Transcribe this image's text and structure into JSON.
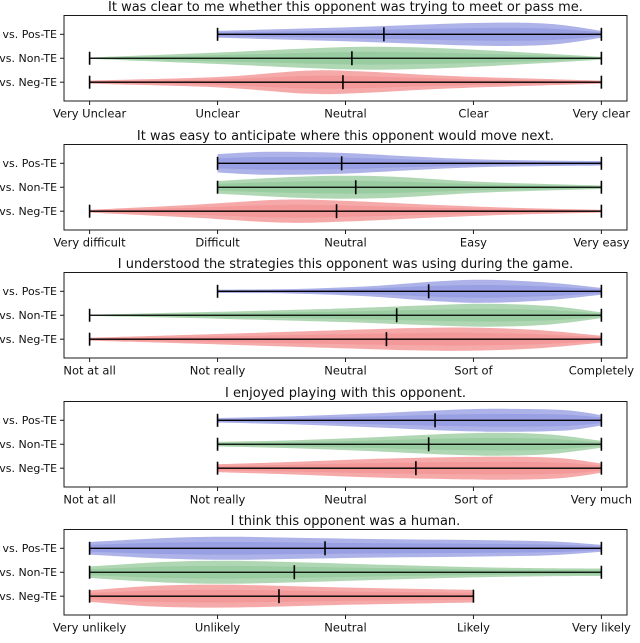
{
  "figure": {
    "background": "#ffffff",
    "axis_color": "#1a1a1a",
    "line_color": "#000000"
  },
  "row_labels": [
    "vs. Pos-TE",
    "vs. Non-TE",
    "vs. Neg-TE"
  ],
  "chart_data": [
    {
      "type": "violin",
      "orientation": "horizontal",
      "title": "It was clear to me whether this opponent was trying to meet or pass me.",
      "xlim": [
        0.8,
        5.2
      ],
      "x_ticks": {
        "values": [
          1,
          2,
          3,
          4,
          5
        ],
        "labels": [
          "Very Unclear",
          "Unclear",
          "Neutral",
          "Clear",
          "Very clear"
        ]
      },
      "series": [
        {
          "name": "vs. Pos-TE",
          "color": "#a6abe7",
          "color_core": "#8b92de",
          "min": 2,
          "max": 5,
          "mean": 3.3,
          "width_profile": [
            [
              2,
              0.3
            ],
            [
              2.5,
              0.45
            ],
            [
              3,
              0.6
            ],
            [
              3.5,
              0.8
            ],
            [
              4,
              0.98
            ],
            [
              4.4,
              1.0
            ],
            [
              4.7,
              0.8
            ],
            [
              5,
              0.3
            ]
          ]
        },
        {
          "name": "vs. Non-TE",
          "color": "#a9d4ac",
          "color_core": "#8cc494",
          "min": 1,
          "max": 5,
          "mean": 3.05,
          "width_profile": [
            [
              1,
              0.06
            ],
            [
              2,
              0.5
            ],
            [
              2.7,
              0.85
            ],
            [
              3.2,
              1.0
            ],
            [
              3.8,
              0.85
            ],
            [
              4.5,
              0.45
            ],
            [
              5,
              0.12
            ]
          ]
        },
        {
          "name": "vs. Neg-TE",
          "color": "#f5a2a2",
          "color_core": "#f28f8f",
          "min": 1,
          "max": 5,
          "mean": 2.98,
          "width_profile": [
            [
              1,
              0.14
            ],
            [
              2,
              0.45
            ],
            [
              2.7,
              1.0
            ],
            [
              3.1,
              0.95
            ],
            [
              3.8,
              0.55
            ],
            [
              4.5,
              0.3
            ],
            [
              5,
              0.14
            ]
          ]
        }
      ]
    },
    {
      "type": "violin",
      "orientation": "horizontal",
      "title": "It was easy to anticipate where this opponent would move next.",
      "xlim": [
        0.8,
        5.2
      ],
      "x_ticks": {
        "values": [
          1,
          2,
          3,
          4,
          5
        ],
        "labels": [
          "Very difficult",
          "Difficult",
          "Neutral",
          "Easy",
          "Very easy"
        ]
      },
      "series": [
        {
          "name": "vs. Pos-TE",
          "color": "#a6abe7",
          "color_core": "#8b92de",
          "min": 2,
          "max": 5,
          "mean": 2.97,
          "width_profile": [
            [
              2,
              0.8
            ],
            [
              2.4,
              1.0
            ],
            [
              3,
              0.9
            ],
            [
              3.5,
              0.6
            ],
            [
              4,
              0.35
            ],
            [
              4.5,
              0.25
            ],
            [
              5,
              0.2
            ]
          ]
        },
        {
          "name": "vs. Non-TE",
          "color": "#a9d4ac",
          "color_core": "#8cc494",
          "min": 2,
          "max": 5,
          "mean": 3.08,
          "width_profile": [
            [
              2,
              0.55
            ],
            [
              2.6,
              0.9
            ],
            [
              3,
              1.0
            ],
            [
              3.4,
              0.9
            ],
            [
              4,
              0.5
            ],
            [
              4.5,
              0.3
            ],
            [
              5,
              0.15
            ]
          ]
        },
        {
          "name": "vs. Neg-TE",
          "color": "#f5a2a2",
          "color_core": "#f28f8f",
          "min": 1,
          "max": 5,
          "mean": 2.93,
          "width_profile": [
            [
              1,
              0.12
            ],
            [
              1.8,
              0.55
            ],
            [
              2.5,
              1.0
            ],
            [
              3,
              0.9
            ],
            [
              3.7,
              0.55
            ],
            [
              4.3,
              0.3
            ],
            [
              5,
              0.12
            ]
          ]
        }
      ]
    },
    {
      "type": "violin",
      "orientation": "horizontal",
      "title": "I understood the strategies this opponent was using during the game.",
      "xlim": [
        0.8,
        5.2
      ],
      "x_ticks": {
        "values": [
          1,
          2,
          3,
          4,
          5
        ],
        "labels": [
          "Not at all",
          "Not really",
          "Neutral",
          "Sort of",
          "Completely"
        ]
      },
      "series": [
        {
          "name": "vs. Pos-TE",
          "color": "#a6abe7",
          "color_core": "#8b92de",
          "min": 2,
          "max": 5,
          "mean": 3.65,
          "width_profile": [
            [
              2,
              0.15
            ],
            [
              2.6,
              0.2
            ],
            [
              3.2,
              0.45
            ],
            [
              3.7,
              0.85
            ],
            [
              4.1,
              1.0
            ],
            [
              4.6,
              0.75
            ],
            [
              5,
              0.3
            ]
          ]
        },
        {
          "name": "vs. Non-TE",
          "color": "#a9d4ac",
          "color_core": "#8cc494",
          "min": 1,
          "max": 5,
          "mean": 3.4,
          "width_profile": [
            [
              1,
              0.05
            ],
            [
              2,
              0.3
            ],
            [
              3,
              0.6
            ],
            [
              3.6,
              0.85
            ],
            [
              4.1,
              1.0
            ],
            [
              4.6,
              0.8
            ],
            [
              5,
              0.25
            ]
          ]
        },
        {
          "name": "vs. Neg-TE",
          "color": "#f5a2a2",
          "color_core": "#f28f8f",
          "min": 1,
          "max": 5,
          "mean": 3.32,
          "width_profile": [
            [
              1,
              0.12
            ],
            [
              2,
              0.45
            ],
            [
              3,
              0.8
            ],
            [
              3.6,
              0.98
            ],
            [
              4,
              1.0
            ],
            [
              4.5,
              0.8
            ],
            [
              5,
              0.3
            ]
          ]
        }
      ]
    },
    {
      "type": "violin",
      "orientation": "horizontal",
      "title": "I enjoyed playing with this opponent.",
      "xlim": [
        0.8,
        5.2
      ],
      "x_ticks": {
        "values": [
          1,
          2,
          3,
          4,
          5
        ],
        "labels": [
          "Not at all",
          "Not really",
          "Neutral",
          "Sort of",
          "Very much"
        ]
      },
      "series": [
        {
          "name": "vs. Pos-TE",
          "color": "#a6abe7",
          "color_core": "#8b92de",
          "min": 2,
          "max": 5,
          "mean": 3.7,
          "width_profile": [
            [
              2,
              0.2
            ],
            [
              2.6,
              0.35
            ],
            [
              3.2,
              0.6
            ],
            [
              3.8,
              0.9
            ],
            [
              4.2,
              1.0
            ],
            [
              4.7,
              0.9
            ],
            [
              5,
              0.45
            ]
          ]
        },
        {
          "name": "vs. Non-TE",
          "color": "#a9d4ac",
          "color_core": "#8cc494",
          "min": 2,
          "max": 5,
          "mean": 3.65,
          "width_profile": [
            [
              2,
              0.2
            ],
            [
              2.6,
              0.35
            ],
            [
              3.2,
              0.6
            ],
            [
              3.8,
              0.9
            ],
            [
              4.2,
              1.0
            ],
            [
              4.6,
              0.85
            ],
            [
              5,
              0.3
            ]
          ]
        },
        {
          "name": "vs. Neg-TE",
          "color": "#f5a2a2",
          "color_core": "#f28f8f",
          "min": 2,
          "max": 5,
          "mean": 3.55,
          "width_profile": [
            [
              2,
              0.35
            ],
            [
              2.6,
              0.55
            ],
            [
              3.2,
              0.8
            ],
            [
              3.8,
              0.95
            ],
            [
              4.3,
              1.0
            ],
            [
              4.7,
              0.85
            ],
            [
              5,
              0.4
            ]
          ]
        }
      ]
    },
    {
      "type": "violin",
      "orientation": "horizontal",
      "title": "I think this opponent was a human.",
      "xlim": [
        0.8,
        5.2
      ],
      "x_ticks": {
        "values": [
          1,
          2,
          3,
          4,
          5
        ],
        "labels": [
          "Very unlikely",
          "Unlikely",
          "Neutral",
          "Likely",
          "Very likely"
        ]
      },
      "series": [
        {
          "name": "vs. Pos-TE",
          "color": "#a6abe7",
          "color_core": "#8b92de",
          "min": 1,
          "max": 5,
          "mean": 2.84,
          "width_profile": [
            [
              1,
              0.55
            ],
            [
              1.6,
              0.9
            ],
            [
              2.1,
              1.0
            ],
            [
              2.7,
              0.9
            ],
            [
              3.3,
              0.8
            ],
            [
              4,
              0.72
            ],
            [
              4.6,
              0.6
            ],
            [
              5,
              0.3
            ]
          ]
        },
        {
          "name": "vs. Non-TE",
          "color": "#a9d4ac",
          "color_core": "#8cc494",
          "min": 1,
          "max": 5,
          "mean": 2.6,
          "width_profile": [
            [
              1,
              0.5
            ],
            [
              1.6,
              0.9
            ],
            [
              2.1,
              1.0
            ],
            [
              2.7,
              0.85
            ],
            [
              3.3,
              0.65
            ],
            [
              4,
              0.45
            ],
            [
              4.6,
              0.35
            ],
            [
              5,
              0.33
            ]
          ]
        },
        {
          "name": "vs. Neg-TE",
          "color": "#f5a2a2",
          "color_core": "#f28f8f",
          "min": 1,
          "max": 4,
          "mean": 2.48,
          "width_profile": [
            [
              1,
              0.5
            ],
            [
              1.5,
              0.9
            ],
            [
              2,
              1.0
            ],
            [
              2.5,
              0.9
            ],
            [
              3,
              0.75
            ],
            [
              3.5,
              0.65
            ],
            [
              4,
              0.55
            ]
          ]
        }
      ]
    }
  ]
}
